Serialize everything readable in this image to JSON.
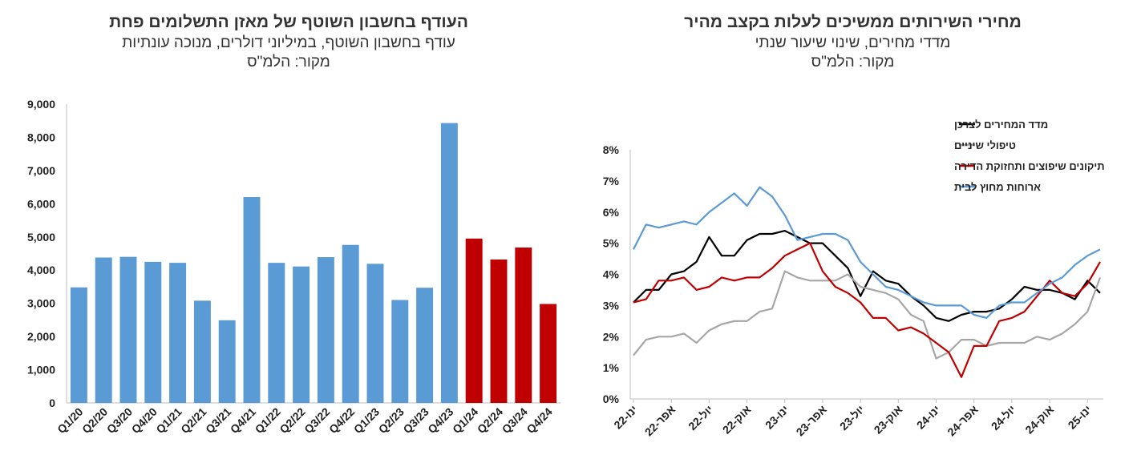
{
  "left_chart": {
    "title": "העודף בחשבון השוטף של מאזן התשלומים פחת",
    "subtitle": "עודף בחשבון השוטף, במיליוני דולרים, מנוכה עונתיות",
    "source": "מקור: הלמ\"ס"
  },
  "right_chart": {
    "title": "מחירי השירותים ממשיכים לעלות בקצב מהיר",
    "subtitle": "מדדי מחירים, שינוי שיעור שנתי",
    "source": "מקור: הלמ\"ס"
  },
  "colors": {
    "blue_bar": "#5B9BD5",
    "red_bar": "#C00000",
    "cpi": "#000000",
    "dental": "#A6A6A6",
    "repairs": "#C00000",
    "dining": "#5B9BD5"
  },
  "chart_data": [
    {
      "type": "bar",
      "categories": [
        "Q1/20",
        "Q2/20",
        "Q3/20",
        "Q4/20",
        "Q1/21",
        "Q2/21",
        "Q3/21",
        "Q4/21",
        "Q1/22",
        "Q2/22",
        "Q3/22",
        "Q4/22",
        "Q1/23",
        "Q2/23",
        "Q3/23",
        "Q4/23",
        "Q1/24",
        "Q2/24",
        "Q3/24",
        "Q4/24"
      ],
      "values": [
        3480,
        4380,
        4400,
        4250,
        4220,
        3080,
        2490,
        6200,
        4220,
        4110,
        4390,
        4760,
        4190,
        3100,
        3470,
        8430,
        4950,
        4320,
        4680,
        2980
      ],
      "highlight_from_index": 16,
      "ylim": [
        0,
        9000
      ],
      "yticks": [
        "0",
        "1,000",
        "2,000",
        "3,000",
        "4,000",
        "5,000",
        "6,000",
        "7,000",
        "8,000",
        "9,000"
      ],
      "grid": false
    },
    {
      "type": "line",
      "x": [
        "Jan-22",
        "Feb-22",
        "Mar-22",
        "Apr-22",
        "May-22",
        "Jun-22",
        "Jul-22",
        "Aug-22",
        "Sep-22",
        "Oct-22",
        "Nov-22",
        "Dec-22",
        "Jan-23",
        "Feb-23",
        "Mar-23",
        "Apr-23",
        "May-23",
        "Jun-23",
        "Jul-23",
        "Aug-23",
        "Sep-23",
        "Oct-23",
        "Nov-23",
        "Dec-23",
        "Jan-24",
        "Feb-24",
        "Mar-24",
        "Apr-24",
        "May-24",
        "Jun-24",
        "Jul-24",
        "Aug-24",
        "Sep-24",
        "Oct-24",
        "Nov-24",
        "Dec-24",
        "Jan-25",
        "Feb-25"
      ],
      "xticks": [
        "ינו-22",
        "אפר-22",
        "יול-22",
        "אוק-22",
        "ינו-23",
        "אפר-23",
        "יול-23",
        "אוק-23",
        "ינו-24",
        "אפר-24",
        "יול-24",
        "אוק-24",
        "ינו-25"
      ],
      "xtick_every": 3,
      "ylim": [
        0,
        8
      ],
      "yticks": [
        "0%",
        "1%",
        "2%",
        "3%",
        "4%",
        "5%",
        "6%",
        "7%",
        "8%"
      ],
      "legend_position": "top-right",
      "series": [
        {
          "name": "מדד המחירים לצרכן",
          "color_key": "cpi",
          "values": [
            3.1,
            3.5,
            3.5,
            4.0,
            4.1,
            4.4,
            5.2,
            4.6,
            4.6,
            5.1,
            5.3,
            5.3,
            5.4,
            5.2,
            5.0,
            5.0,
            4.6,
            4.2,
            3.3,
            4.1,
            3.8,
            3.7,
            3.3,
            3.0,
            2.6,
            2.5,
            2.7,
            2.8,
            2.8,
            2.9,
            3.2,
            3.6,
            3.5,
            3.5,
            3.4,
            3.2,
            3.8,
            3.4
          ]
        },
        {
          "name": "טיפולי שיניים",
          "color_key": "dental",
          "values": [
            1.4,
            1.9,
            2.0,
            2.0,
            2.1,
            1.8,
            2.2,
            2.4,
            2.5,
            2.5,
            2.8,
            2.9,
            4.1,
            3.9,
            3.8,
            3.8,
            3.8,
            4.0,
            3.6,
            3.5,
            3.4,
            3.2,
            2.7,
            2.5,
            1.3,
            1.5,
            1.9,
            1.9,
            1.7,
            1.8,
            1.8,
            1.8,
            2.0,
            1.9,
            2.1,
            2.4,
            2.8,
            3.9
          ]
        },
        {
          "name": "תיקונים שיפוצים ותחזוקת הדירה",
          "color_key": "repairs",
          "values": [
            3.1,
            3.2,
            3.8,
            3.8,
            3.9,
            3.5,
            3.6,
            3.9,
            3.8,
            3.9,
            3.9,
            4.2,
            4.6,
            4.8,
            5.0,
            4.1,
            3.6,
            3.4,
            3.1,
            2.6,
            2.6,
            2.2,
            2.3,
            2.1,
            1.8,
            1.5,
            0.7,
            1.7,
            1.7,
            2.5,
            2.6,
            2.8,
            3.3,
            3.8,
            3.4,
            3.3,
            3.7,
            4.4
          ]
        },
        {
          "name": "ארוחות מחוץ לבית",
          "color_key": "dining",
          "values": [
            4.8,
            5.6,
            5.5,
            5.6,
            5.7,
            5.6,
            6.0,
            6.3,
            6.6,
            6.2,
            6.8,
            6.5,
            5.9,
            5.1,
            5.2,
            5.3,
            5.3,
            5.1,
            4.4,
            4.0,
            3.6,
            3.5,
            3.3,
            3.1,
            3.0,
            3.0,
            3.0,
            2.7,
            2.6,
            3.0,
            3.1,
            3.1,
            3.4,
            3.7,
            3.9,
            4.3,
            4.6,
            4.8
          ]
        }
      ]
    }
  ]
}
